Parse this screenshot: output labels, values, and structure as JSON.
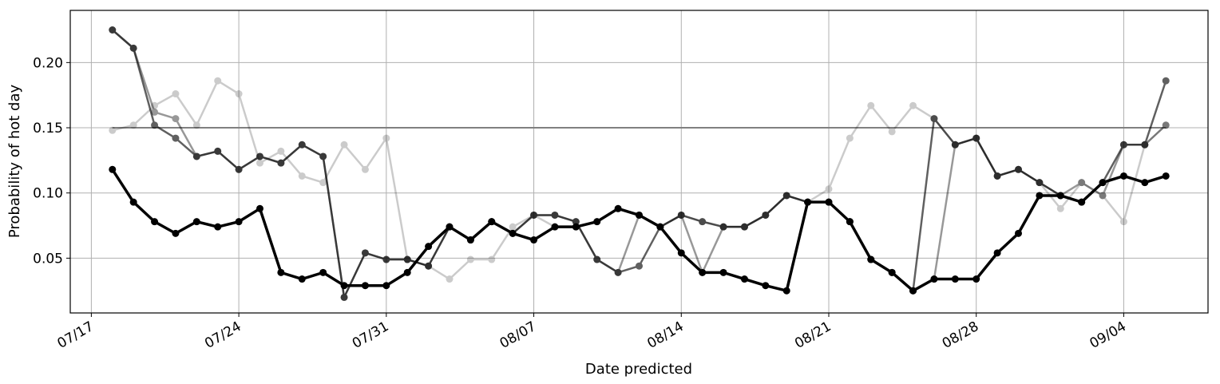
{
  "chart_data": {
    "type": "line",
    "title": "",
    "xlabel": "Date predicted",
    "ylabel": "Probability of hot day",
    "x_start": "2023-07-18",
    "x_dates": [
      "07/18",
      "07/19",
      "07/20",
      "07/21",
      "07/22",
      "07/23",
      "07/24",
      "07/25",
      "07/26",
      "07/27",
      "07/28",
      "07/29",
      "07/30",
      "07/31",
      "08/01",
      "08/02",
      "08/03",
      "08/04",
      "08/05",
      "08/06",
      "08/07",
      "08/08",
      "08/09",
      "08/10",
      "08/11",
      "08/12",
      "08/13",
      "08/14",
      "08/15",
      "08/16",
      "08/17",
      "08/18",
      "08/19",
      "08/20",
      "08/21",
      "08/22",
      "08/23",
      "08/24",
      "08/25",
      "08/26",
      "08/27",
      "08/28",
      "08/29",
      "08/30",
      "08/31",
      "09/01",
      "09/02",
      "09/03",
      "09/04",
      "09/05",
      "09/06"
    ],
    "xlim_dates": [
      "07/16",
      "09/08"
    ],
    "ylim": [
      0.008,
      0.24
    ],
    "x_ticks": [
      {
        "date": "07/17",
        "label": "07/17"
      },
      {
        "date": "07/24",
        "label": "07/24"
      },
      {
        "date": "07/31",
        "label": "07/31"
      },
      {
        "date": "08/07",
        "label": "08/07"
      },
      {
        "date": "08/14",
        "label": "08/14"
      },
      {
        "date": "08/21",
        "label": "08/21"
      },
      {
        "date": "08/28",
        "label": "08/28"
      },
      {
        "date": "09/04",
        "label": "09/04"
      }
    ],
    "y_ticks": [
      {
        "value": 0.05,
        "label": "0.05"
      },
      {
        "value": 0.1,
        "label": "0.10"
      },
      {
        "value": 0.15,
        "label": "0.15"
      },
      {
        "value": 0.2,
        "label": "0.20"
      }
    ],
    "grid": true,
    "reference_line": {
      "value": 0.15,
      "color": "#808080"
    },
    "series": [
      {
        "color": "#000000",
        "opacity": 0.2,
        "width": 2.5,
        "values": [
          0.148,
          0.152,
          0.167,
          0.176,
          0.152,
          0.186,
          0.176,
          0.123,
          0.132,
          0.113,
          0.108,
          0.137,
          0.118,
          0.142,
          0.049,
          0.044,
          0.034,
          0.049,
          0.049,
          0.074,
          0.083,
          0.074,
          0.074,
          0.078,
          0.088,
          0.083,
          0.074,
          0.083,
          0.078,
          0.074,
          0.074,
          0.083,
          0.098,
          0.093,
          0.103,
          0.142,
          0.167,
          0.147,
          0.167,
          0.157,
          0.137,
          0.142,
          0.113,
          0.118,
          0.108,
          0.088,
          0.108,
          0.098,
          0.078,
          0.137,
          0.152
        ]
      },
      {
        "color": "#000000",
        "opacity": 0.4,
        "width": 2.5,
        "values": [
          0.225,
          0.211,
          0.162,
          0.157,
          0.128,
          0.132,
          0.118,
          0.128,
          0.123,
          0.137,
          0.128,
          0.02,
          0.054,
          0.049,
          0.049,
          0.044,
          0.074,
          0.064,
          0.078,
          0.069,
          0.083,
          0.083,
          0.078,
          0.049,
          0.039,
          0.083,
          0.074,
          0.083,
          0.039,
          0.074,
          0.074,
          0.083,
          0.098,
          0.093,
          0.093,
          0.078,
          0.049,
          0.039,
          0.025,
          0.034,
          0.137,
          0.142,
          0.113,
          0.118,
          0.108,
          0.098,
          0.108,
          0.098,
          0.137,
          0.137,
          0.152
        ]
      },
      {
        "color": "#000000",
        "opacity": 0.62,
        "width": 2.5,
        "values": [
          0.225,
          0.211,
          0.152,
          0.142,
          0.128,
          0.132,
          0.118,
          0.128,
          0.123,
          0.137,
          0.128,
          0.02,
          0.054,
          0.049,
          0.049,
          0.044,
          0.074,
          0.064,
          0.078,
          0.069,
          0.083,
          0.083,
          0.078,
          0.049,
          0.039,
          0.044,
          0.074,
          0.083,
          0.078,
          0.074,
          0.074,
          0.083,
          0.098,
          0.093,
          0.093,
          0.078,
          0.049,
          0.039,
          0.025,
          0.157,
          0.137,
          0.142,
          0.113,
          0.118,
          0.108,
          0.098,
          0.093,
          0.108,
          0.137,
          0.137,
          0.186
        ]
      },
      {
        "color": "#000000",
        "opacity": 1.0,
        "width": 3.5,
        "values": [
          0.118,
          0.093,
          0.078,
          0.069,
          0.078,
          0.074,
          0.078,
          0.088,
          0.039,
          0.034,
          0.039,
          0.029,
          0.029,
          0.029,
          0.039,
          0.059,
          0.074,
          0.064,
          0.078,
          0.069,
          0.064,
          0.074,
          0.074,
          0.078,
          0.088,
          0.083,
          0.074,
          0.054,
          0.039,
          0.039,
          0.034,
          0.029,
          0.025,
          0.093,
          0.093,
          0.078,
          0.049,
          0.039,
          0.025,
          0.034,
          0.034,
          0.034,
          0.054,
          0.069,
          0.098,
          0.098,
          0.093,
          0.108,
          0.113,
          0.108,
          0.113
        ]
      }
    ]
  }
}
